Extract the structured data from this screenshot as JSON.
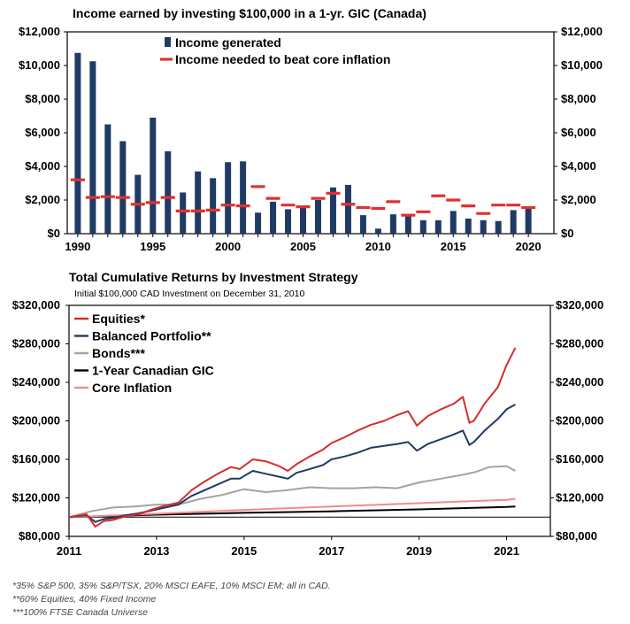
{
  "chart_data": [
    {
      "type": "bar",
      "title": "Income earned by investing $100,000 in a 1-yr. GIC (Canada)",
      "ylim": [
        0,
        12000
      ],
      "y_ticks": [
        "$0",
        "$2,000",
        "$4,000",
        "$6,000",
        "$8,000",
        "$10,000",
        "$12,000"
      ],
      "y_tick_values": [
        0,
        2000,
        4000,
        6000,
        8000,
        10000,
        12000
      ],
      "x_ticks": [
        "1990",
        "1995",
        "2000",
        "2005",
        "2010",
        "2015",
        "2020"
      ],
      "x_tick_values": [
        1990,
        1995,
        2000,
        2005,
        2010,
        2015,
        2020
      ],
      "xlim": [
        1989.3,
        2021.7
      ],
      "categories": [
        1990,
        1991,
        1992,
        1993,
        1994,
        1995,
        1996,
        1997,
        1998,
        1999,
        2000,
        2001,
        2002,
        2003,
        2004,
        2005,
        2006,
        2007,
        2008,
        2009,
        2010,
        2011,
        2012,
        2013,
        2014,
        2015,
        2016,
        2017,
        2018,
        2019,
        2020
      ],
      "series": [
        {
          "name": "Income generated",
          "kind": "bar",
          "color": "#1f3b63",
          "values": [
            10750,
            10250,
            6500,
            5500,
            3500,
            6900,
            4900,
            2450,
            3700,
            3300,
            4250,
            4300,
            1250,
            1900,
            1450,
            1650,
            2000,
            2750,
            2900,
            1100,
            300,
            1150,
            1150,
            800,
            800,
            1350,
            900,
            800,
            750,
            1400,
            1500
          ]
        },
        {
          "name": "Income needed to beat core inflation",
          "kind": "dash",
          "color": "#e03131",
          "values": [
            3200,
            2150,
            2200,
            2150,
            1750,
            1850,
            2150,
            1350,
            1350,
            1400,
            1700,
            1650,
            2800,
            2100,
            1700,
            1600,
            2100,
            2400,
            1750,
            1550,
            1500,
            1900,
            1100,
            1300,
            2250,
            2000,
            1650,
            1200,
            1700,
            1700,
            1550
          ]
        }
      ],
      "legend_position": "top-left"
    },
    {
      "type": "line",
      "title": "Total Cumulative Returns by Investment Strategy",
      "subtitle": "Initial $100,000 CAD Investment on December 31, 2010",
      "ylim": [
        80000,
        320000
      ],
      "y_ticks": [
        "$80,000",
        "$120,000",
        "$160,000",
        "$200,000",
        "$240,000",
        "$280,000",
        "$320,000"
      ],
      "y_tick_values": [
        80000,
        120000,
        160000,
        200000,
        240000,
        280000,
        320000
      ],
      "x_ticks": [
        "2011",
        "2013",
        "2015",
        "2017",
        "2019",
        "2021"
      ],
      "x_tick_values": [
        2011,
        2013,
        2015,
        2017,
        2019,
        2021
      ],
      "xlim": [
        2011,
        2022
      ],
      "reference_line": 100000,
      "legend_position": "top-left",
      "series": [
        {
          "name": "Equities*",
          "color": "#d82b2b",
          "x": [
            2011,
            2011.4,
            2011.6,
            2011.8,
            2012,
            2012.3,
            2012.6,
            2012.9,
            2013.2,
            2013.5,
            2013.8,
            2014.1,
            2014.4,
            2014.7,
            2014.9,
            2015.2,
            2015.5,
            2015.8,
            2016,
            2016.2,
            2016.5,
            2016.8,
            2017,
            2017.3,
            2017.6,
            2017.9,
            2018.2,
            2018.5,
            2018.75,
            2018.95,
            2019.2,
            2019.5,
            2019.8,
            2020.0,
            2020.15,
            2020.25,
            2020.5,
            2020.8,
            2021.0,
            2021.2
          ],
          "y": [
            100000,
            103000,
            90000,
            96000,
            97000,
            101000,
            103000,
            108000,
            112000,
            115000,
            128000,
            137000,
            145000,
            152000,
            150000,
            160000,
            158000,
            153000,
            148000,
            155000,
            163000,
            170000,
            177000,
            183000,
            190000,
            196000,
            200000,
            206000,
            210000,
            195000,
            205000,
            212000,
            218000,
            225000,
            198000,
            200000,
            218000,
            235000,
            258000,
            276000
          ]
        },
        {
          "name": "Balanced Portfolio**",
          "color": "#1f3b63",
          "x": [
            2011,
            2011.4,
            2011.6,
            2011.8,
            2012,
            2012.3,
            2012.6,
            2012.9,
            2013.2,
            2013.5,
            2013.8,
            2014.1,
            2014.4,
            2014.7,
            2014.9,
            2015.2,
            2015.5,
            2015.8,
            2016,
            2016.2,
            2016.5,
            2016.8,
            2017,
            2017.3,
            2017.6,
            2017.9,
            2018.2,
            2018.5,
            2018.75,
            2018.95,
            2019.2,
            2019.5,
            2019.8,
            2020.0,
            2020.15,
            2020.25,
            2020.5,
            2020.8,
            2021.0,
            2021.2
          ],
          "y": [
            100000,
            102000,
            95000,
            98000,
            99000,
            102000,
            104000,
            107000,
            110000,
            113000,
            122000,
            128000,
            134000,
            140000,
            140000,
            148000,
            145000,
            142000,
            140000,
            146000,
            150000,
            154000,
            160000,
            163000,
            167000,
            172000,
            174000,
            176000,
            178000,
            169000,
            176000,
            181000,
            186000,
            190000,
            175000,
            178000,
            190000,
            202000,
            212000,
            217000
          ]
        },
        {
          "name": "Bonds***",
          "color": "#a3a3a3",
          "x": [
            2011,
            2011.5,
            2012,
            2012.5,
            2013,
            2013.5,
            2014,
            2014.5,
            2015,
            2015.5,
            2016,
            2016.5,
            2017,
            2017.5,
            2018,
            2018.5,
            2019,
            2019.5,
            2020,
            2020.3,
            2020.6,
            2021,
            2021.2
          ],
          "y": [
            100000,
            106000,
            110000,
            111000,
            113000,
            113000,
            119000,
            123000,
            129000,
            126000,
            128000,
            131000,
            130000,
            130000,
            131000,
            130000,
            136000,
            140000,
            144000,
            147000,
            152000,
            153000,
            148000
          ]
        },
        {
          "name": "1-Year Canadian GIC",
          "color": "#000000",
          "x": [
            2011,
            2013,
            2015,
            2017,
            2019,
            2021,
            2021.2
          ],
          "y": [
            100000,
            102500,
            104500,
            106000,
            108000,
            110500,
            111000
          ]
        },
        {
          "name": "Core Inflation",
          "color": "#f28b8b",
          "x": [
            2011,
            2013,
            2015,
            2017,
            2019,
            2021,
            2021.2
          ],
          "y": [
            100000,
            103500,
            107500,
            111000,
            114500,
            118000,
            119000
          ]
        }
      ]
    }
  ],
  "footnotes": [
    "*35% S&P 500, 35% S&P/TSX, 20% MSCI EAFE, 10% MSCI EM; all in CAD.",
    "**60% Equities, 40% Fixed Income",
    "***100% FTSE Canada Universe"
  ]
}
